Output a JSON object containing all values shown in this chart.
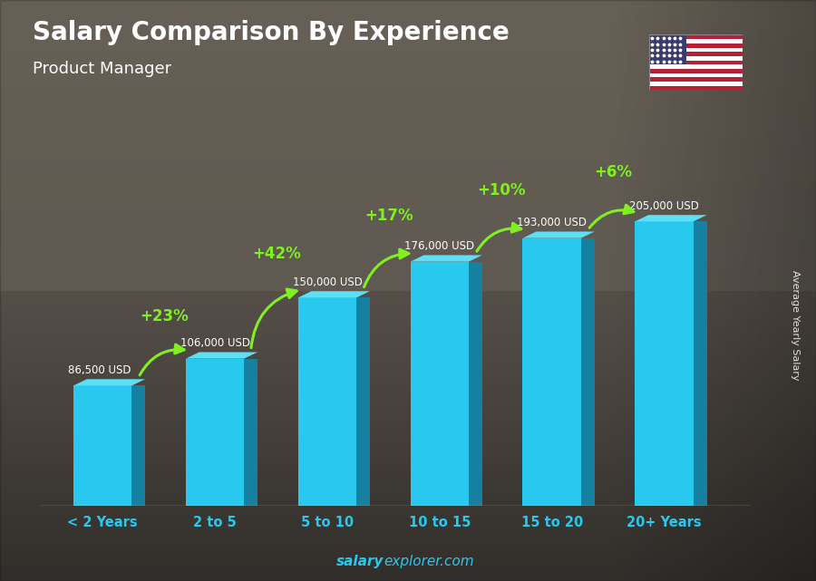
{
  "title": "Salary Comparison By Experience",
  "subtitle": "Product Manager",
  "categories": [
    "< 2 Years",
    "2 to 5",
    "5 to 10",
    "10 to 15",
    "15 to 20",
    "20+ Years"
  ],
  "values": [
    86500,
    106000,
    150000,
    176000,
    193000,
    205000
  ],
  "value_labels": [
    "86,500 USD",
    "106,000 USD",
    "150,000 USD",
    "176,000 USD",
    "193,000 USD",
    "205,000 USD"
  ],
  "pct_changes": [
    "+23%",
    "+42%",
    "+17%",
    "+10%",
    "+6%"
  ],
  "bar_color_face": "#29C8EE",
  "bar_color_dark": "#1580A0",
  "bar_color_top": "#5DE0F5",
  "bar_color_left": "#40D0F0",
  "text_color_white": "#ffffff",
  "text_color_green": "#80F020",
  "ylabel": "Average Yearly Salary",
  "footer_regular": "explorer.com",
  "footer_bold": "salary",
  "ylim": [
    0,
    260000
  ],
  "bg_top": "#6B6B6B",
  "bg_bottom": "#3A3A3A"
}
